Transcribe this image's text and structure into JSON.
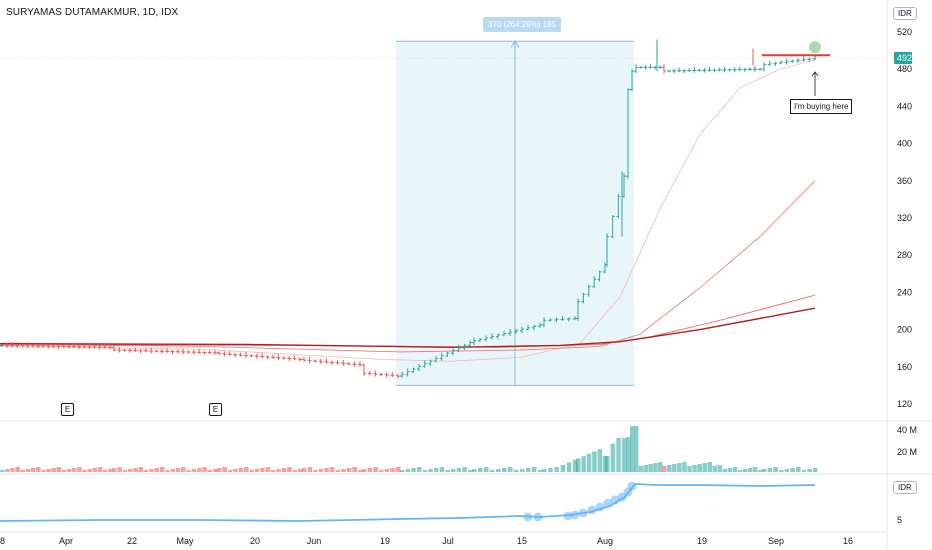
{
  "header": {
    "title": "SURYAMAS DUTAMAKMUR, 1D, IDX",
    "currency_top": "IDR",
    "currency_bottom": "IDR"
  },
  "annotations": {
    "range_label": "370 (264.29%) 185",
    "note": "I'm buying here",
    "earnings_1": "E",
    "earnings_2": "E"
  },
  "colors": {
    "up": "#26a69a",
    "down": "#ef5350",
    "range_fill": "#e3f4f8",
    "range_line": "#8fb6e0",
    "sma_fast": "#f4b6b4",
    "sma_mid": "#e57373",
    "sma_slow": "#b71c1c",
    "rs_line": "#64b5f6",
    "price_tag": "#26a69a"
  },
  "chart_data": [
    {
      "type": "line",
      "panel": "price",
      "ylim": [
        110,
        530
      ],
      "y_ticks": [
        120,
        160,
        200,
        240,
        280,
        320,
        360,
        400,
        440,
        480,
        520
      ],
      "last_price": 492,
      "x_tick_labels": [
        "8",
        "Apr",
        "22",
        "May",
        "20",
        "Jun",
        "19",
        "Jul",
        "15",
        "Aug",
        "19",
        "Sep",
        "16"
      ],
      "range_measure": {
        "low": 140,
        "high": 510
      },
      "buy_level": 495,
      "closes_sample": [
        183,
        182,
        184,
        181,
        179,
        176,
        175,
        174,
        172,
        168,
        162,
        152,
        150,
        158,
        170,
        186,
        190,
        210,
        215,
        270,
        300,
        365,
        455,
        480,
        478,
        482,
        484,
        490,
        492
      ],
      "sma_fast_end": 490,
      "sma_mid_end": 360,
      "sma_slow_end": 223
    },
    {
      "type": "bar",
      "panel": "volume",
      "y_ticks": [
        "40 M",
        "20 M"
      ],
      "ylim": [
        0,
        48
      ]
    },
    {
      "type": "line",
      "panel": "indicator",
      "y_ticks": [
        "5"
      ]
    }
  ],
  "price_axis": {
    "ticks": [
      "520",
      "480",
      "440",
      "400",
      "360",
      "320",
      "280",
      "240",
      "200",
      "160",
      "120"
    ],
    "current": "492"
  },
  "time_axis": [
    "8",
    "Apr",
    "22",
    "May",
    "20",
    "Jun",
    "19",
    "Jul",
    "15",
    "Aug",
    "19",
    "Sep",
    "16"
  ]
}
